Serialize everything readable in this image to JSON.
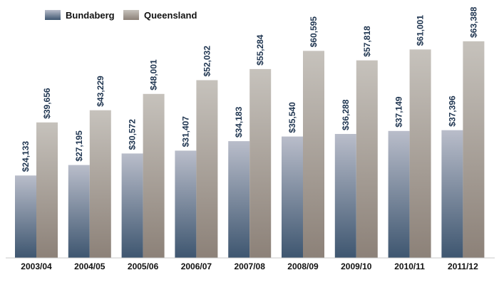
{
  "chart_data": {
    "type": "bar",
    "categories": [
      "2003/04",
      "2004/05",
      "2005/06",
      "2006/07",
      "2007/08",
      "2008/09",
      "2009/10",
      "2010/11",
      "2011/12"
    ],
    "series": [
      {
        "name": "Bundaberg",
        "values": [
          24133,
          27195,
          30572,
          31407,
          34183,
          35540,
          36288,
          37149,
          37396
        ],
        "labels": [
          "$24,133",
          "$27,195",
          "$30,572",
          "$31,407",
          "$34,183",
          "$35,540",
          "$36,288",
          "$37,149",
          "$37,396"
        ],
        "color_top": "#b9bdca",
        "color_bottom": "#3e5670"
      },
      {
        "name": "Queensland",
        "values": [
          39656,
          43229,
          48001,
          52032,
          55284,
          60595,
          57818,
          61001,
          63388
        ],
        "labels": [
          "$39,656",
          "$43,229",
          "$48,001",
          "$52,032",
          "$55,284",
          "$60,595",
          "$57,818",
          "$61,001",
          "$63,388"
        ],
        "color_top": "#c6c2bc",
        "color_bottom": "#8c8178"
      }
    ],
    "ylim": [
      0,
      63388
    ],
    "grid": false,
    "legend": "top-left"
  }
}
